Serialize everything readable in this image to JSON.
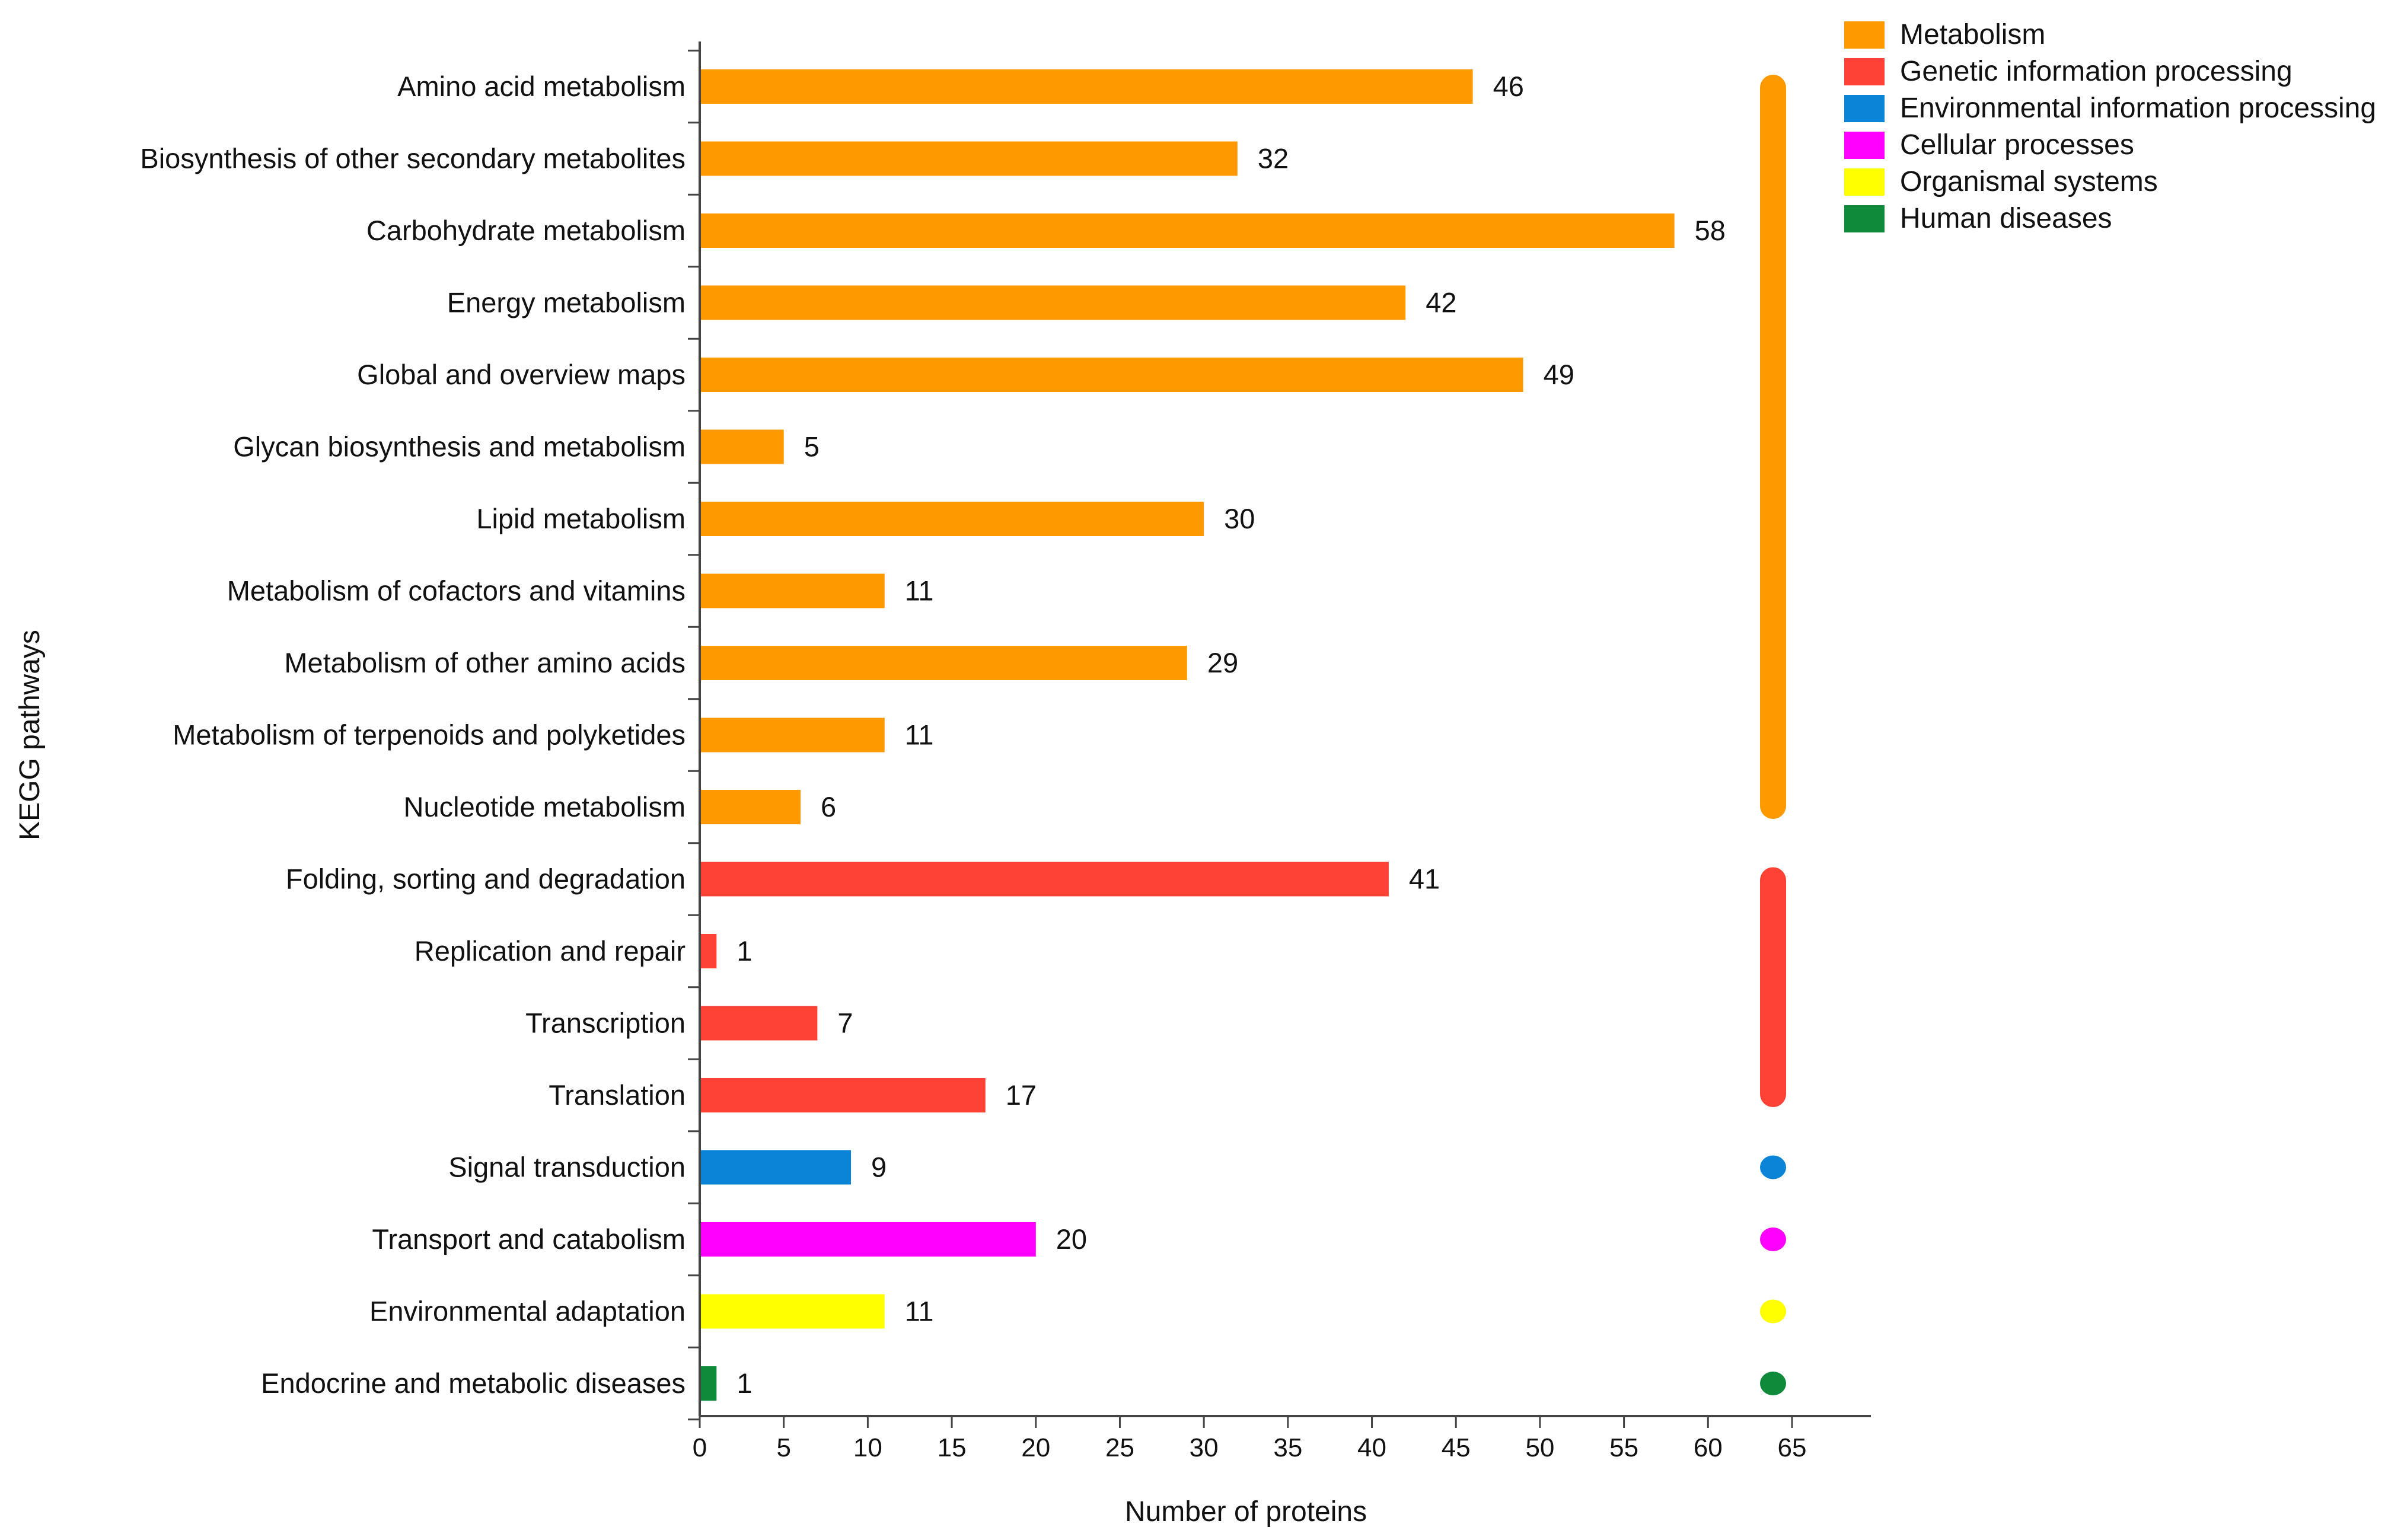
{
  "chart_data": {
    "type": "bar",
    "orientation": "horizontal",
    "title": "",
    "xlabel": "Number of proteins",
    "ylabel": "KEGG pathways",
    "xlim": [
      0,
      65
    ],
    "xticks": [
      0,
      5,
      10,
      15,
      20,
      25,
      30,
      35,
      40,
      45,
      50,
      55,
      60,
      65
    ],
    "grid": false,
    "legend_position": "top-right",
    "groups": [
      {
        "name": "Metabolism",
        "color": "#FF9900"
      },
      {
        "name": "Genetic information processing",
        "color": "#FF4136"
      },
      {
        "name": "Environmental information processing",
        "color": "#0A84D6"
      },
      {
        "name": "Cellular processes",
        "color": "#FF00FF"
      },
      {
        "name": "Organismal systems",
        "color": "#FFFF00"
      },
      {
        "name": "Human diseases",
        "color": "#0F8A3A"
      }
    ],
    "categories": [
      {
        "label": "Amino acid metabolism",
        "value": 46,
        "group": 0
      },
      {
        "label": "Biosynthesis of other secondary metabolites",
        "value": 32,
        "group": 0
      },
      {
        "label": "Carbohydrate metabolism",
        "value": 58,
        "group": 0
      },
      {
        "label": "Energy metabolism",
        "value": 42,
        "group": 0
      },
      {
        "label": "Global and overview maps",
        "value": 49,
        "group": 0
      },
      {
        "label": "Glycan biosynthesis and metabolism",
        "value": 5,
        "group": 0
      },
      {
        "label": "Lipid metabolism",
        "value": 30,
        "group": 0
      },
      {
        "label": "Metabolism of cofactors and vitamins",
        "value": 11,
        "group": 0
      },
      {
        "label": "Metabolism of other amino acids",
        "value": 29,
        "group": 0
      },
      {
        "label": "Metabolism of terpenoids and polyketides",
        "value": 11,
        "group": 0
      },
      {
        "label": "Nucleotide metabolism",
        "value": 6,
        "group": 0
      },
      {
        "label": "Folding, sorting and degradation",
        "value": 41,
        "group": 1
      },
      {
        "label": "Replication and repair",
        "value": 1,
        "group": 1
      },
      {
        "label": "Transcription",
        "value": 7,
        "group": 1
      },
      {
        "label": "Translation",
        "value": 17,
        "group": 1
      },
      {
        "label": "Signal transduction",
        "value": 9,
        "group": 2
      },
      {
        "label": "Transport and catabolism",
        "value": 20,
        "group": 3
      },
      {
        "label": "Environmental adaptation",
        "value": 11,
        "group": 4
      },
      {
        "label": "Endocrine and metabolic diseases",
        "value": 1,
        "group": 5
      }
    ]
  }
}
